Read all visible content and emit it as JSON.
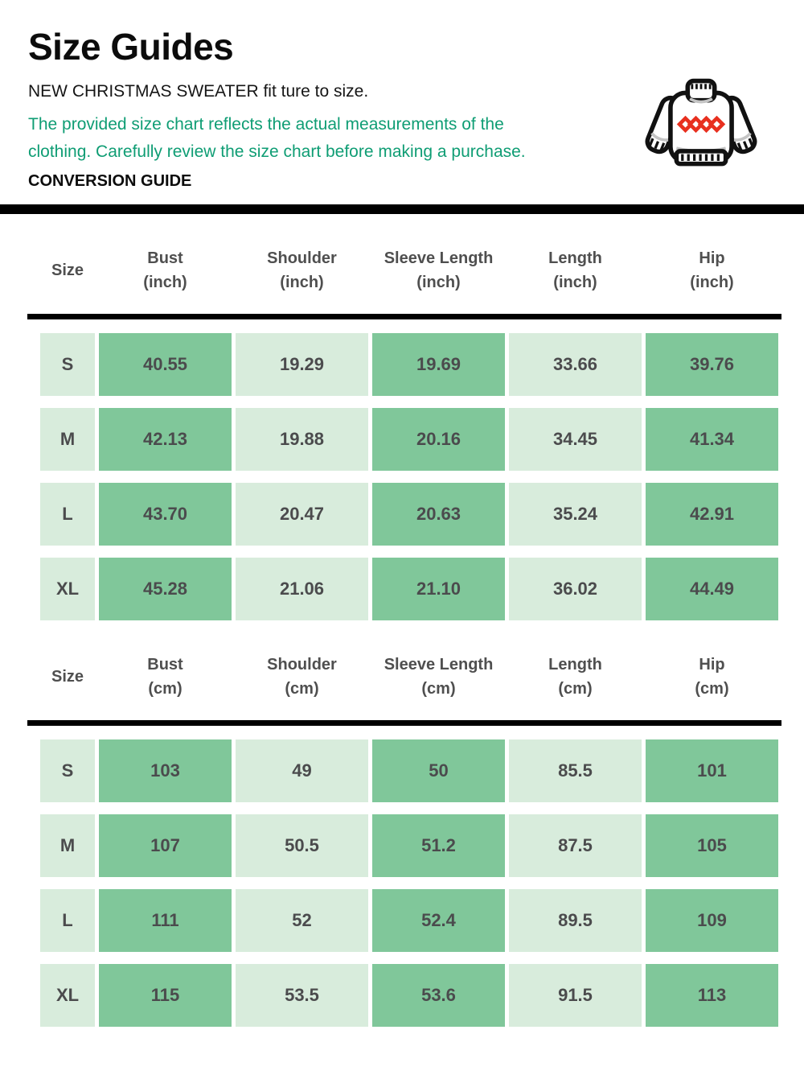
{
  "header": {
    "title": "Size Guides",
    "fit_note": "NEW CHRISTMAS SWEATER fit ture to size.",
    "description": "The provided size chart reflects the actual measurements of the clothing. Carefully review the size chart before making a purchase.",
    "section_label": "CONVERSION GUIDE"
  },
  "icons": {
    "sweater": "sweater-icon"
  },
  "colors": {
    "accent_text_green": "#0f9d74",
    "cell_green_dark": "#80c79a",
    "cell_green_light": "#d8ecdc",
    "table_text_gray": "#4b4b4d",
    "divider_black": "#000000",
    "sweater_outline": "#111111",
    "sweater_diamond_red": "#e8301f"
  },
  "chart_data": {
    "type": "table",
    "tables": [
      {
        "unit": "inch",
        "columns": [
          {
            "label": "Size",
            "unit": ""
          },
          {
            "label": "Bust",
            "unit": "(inch)"
          },
          {
            "label": "Shoulder",
            "unit": "(inch)"
          },
          {
            "label": "Sleeve Length",
            "unit": "(inch)"
          },
          {
            "label": "Length",
            "unit": "(inch)"
          },
          {
            "label": "Hip",
            "unit": "(inch)"
          }
        ],
        "rows": [
          {
            "size": "S",
            "values": [
              "40.55",
              "19.29",
              "19.69",
              "33.66",
              "39.76"
            ]
          },
          {
            "size": "M",
            "values": [
              "42.13",
              "19.88",
              "20.16",
              "34.45",
              "41.34"
            ]
          },
          {
            "size": "L",
            "values": [
              "43.70",
              "20.47",
              "20.63",
              "35.24",
              "42.91"
            ]
          },
          {
            "size": "XL",
            "values": [
              "45.28",
              "21.06",
              "21.10",
              "36.02",
              "44.49"
            ]
          }
        ]
      },
      {
        "unit": "cm",
        "columns": [
          {
            "label": "Size",
            "unit": ""
          },
          {
            "label": "Bust",
            "unit": "(cm)"
          },
          {
            "label": "Shoulder",
            "unit": "(cm)"
          },
          {
            "label": "Sleeve Length",
            "unit": "(cm)"
          },
          {
            "label": "Length",
            "unit": "(cm)"
          },
          {
            "label": "Hip",
            "unit": "(cm)"
          }
        ],
        "rows": [
          {
            "size": "S",
            "values": [
              "103",
              "49",
              "50",
              "85.5",
              "101"
            ]
          },
          {
            "size": "M",
            "values": [
              "107",
              "50.5",
              "51.2",
              "87.5",
              "105"
            ]
          },
          {
            "size": "L",
            "values": [
              "111",
              "52",
              "52.4",
              "89.5",
              "109"
            ]
          },
          {
            "size": "XL",
            "values": [
              "115",
              "53.5",
              "53.6",
              "91.5",
              "113"
            ]
          }
        ]
      }
    ]
  }
}
